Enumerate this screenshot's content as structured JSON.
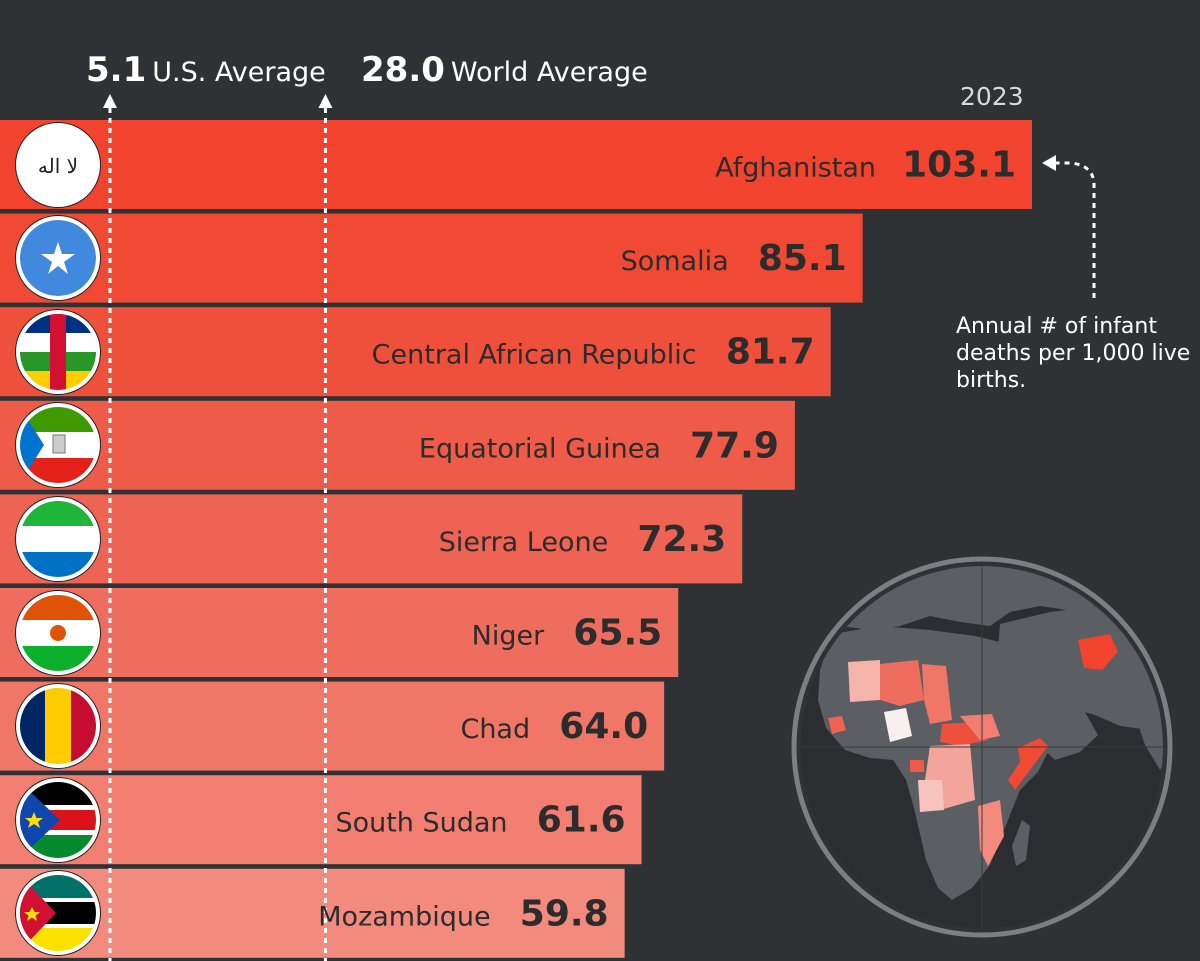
{
  "chart_data": {
    "type": "bar",
    "orientation": "horizontal",
    "year_label": "2023",
    "note": "Annual # of infant deaths per 1,000 live births.",
    "categories": [
      "Afghanistan",
      "Somalia",
      "Central African Republic",
      "Equatorial Guinea",
      "Sierra Leone",
      "Niger",
      "Chad",
      "South Sudan",
      "Mozambique"
    ],
    "values": [
      103.1,
      85.1,
      81.7,
      77.9,
      72.3,
      65.5,
      64.0,
      61.6,
      59.8
    ],
    "value_labels": [
      "103.1",
      "85.1",
      "81.7",
      "77.9",
      "72.3",
      "65.5",
      "64.0",
      "61.6",
      "59.8"
    ],
    "reference_lines": [
      {
        "value": 5.1,
        "value_label": "5.1",
        "label": "U.S. Average"
      },
      {
        "value": 28.0,
        "value_label": "28.0",
        "label": "World Average"
      }
    ],
    "bar_colors": [
      "#f1432e",
      "#f04934",
      "#ef503c",
      "#ee5b48",
      "#ee6354",
      "#ef6d5e",
      "#f07668",
      "#f17e71",
      "#f28a7e"
    ],
    "flag_icons": [
      "afghanistan-flag-icon",
      "somalia-flag-icon",
      "central-african-republic-flag-icon",
      "equatorial-guinea-flag-icon",
      "sierra-leone-flag-icon",
      "niger-flag-icon",
      "chad-flag-icon",
      "south-sudan-flag-icon",
      "mozambique-flag-icon"
    ]
  },
  "map": {
    "icon": "globe-map-africa-middle-east-icon"
  },
  "colors": {
    "background": "#2f3235",
    "label_text": "#2c2c2c",
    "highlight": "#f1432e"
  }
}
